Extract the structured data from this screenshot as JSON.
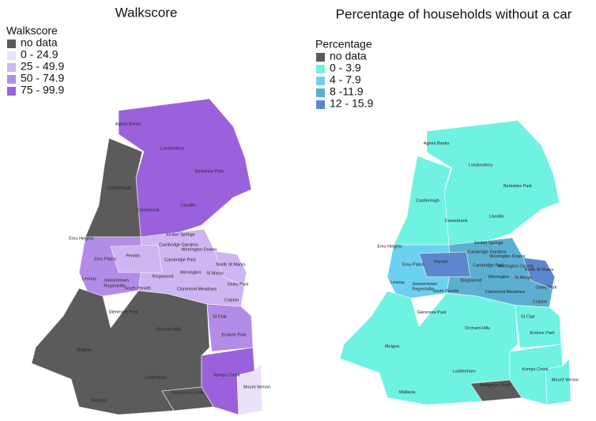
{
  "maps": [
    {
      "title": "Walkscore",
      "legend_title": "Walkscore",
      "legend": [
        {
          "label": "no data",
          "color": "#5b5b5b"
        },
        {
          "label": "0 - 24.9",
          "color": "#ebe1f8"
        },
        {
          "label": "25 - 49.9",
          "color": "#cdb6f2"
        },
        {
          "label": "50 - 74.9",
          "color": "#b38ce8"
        },
        {
          "label": "75 - 99.9",
          "color": "#9b61dd"
        }
      ],
      "regions": [
        "Agnes Banks",
        "Londonderry",
        "Berkshire Park",
        "Castlereagh",
        "Cranebrook",
        "Llandilo",
        "Emu Heights",
        "Jordan Springs",
        "Cambridge Gardens",
        "Werrington Downs",
        "Emu Plains",
        "Penrith",
        "Cambridge Park",
        "North St Marys",
        "Werrington",
        "St Marys",
        "Leonay",
        "Kingswood",
        "Oxley Park",
        "Jamisontown",
        "Regentville",
        "South Penrith",
        "Claremont Meadows",
        "Colyton",
        "Glenmore Park",
        "St Clair",
        "Orchard Hills",
        "Erskine Park",
        "Mulgoa",
        "Kemps Creek",
        "Luddenham",
        "Badgerys Creek",
        "Mount Vernon",
        "Wallacia"
      ]
    },
    {
      "title": "Percentage of households without a car",
      "legend_title": "Percentage",
      "legend": [
        {
          "label": "no data",
          "color": "#5b5b5b"
        },
        {
          "label": "0 - 3.9",
          "color": "#6ff2e2"
        },
        {
          "label": "4 - 7.9",
          "color": "#6cd0f0"
        },
        {
          "label": "8 -11.9",
          "color": "#5cafd0"
        },
        {
          "label": "12 - 15.9",
          "color": "#5b88cc"
        }
      ],
      "regions": [
        "Agnes Banks",
        "Londonderry",
        "Berkshire Park",
        "Castlereagh",
        "Cranebrook",
        "Llandilo",
        "Emu Heights",
        "Jordan Springs",
        "Cambridge Gardens",
        "Werrington Downs",
        "Emu Plains",
        "Penrith",
        "Cambridge Park",
        "North St Marys",
        "Werrington",
        "St Marys",
        "Leonay",
        "Kingswood",
        "Oxley Park",
        "Jamisontown",
        "Regentville",
        "South Penrith",
        "Claremont Meadows",
        "Colyton",
        "Glenmore Park",
        "St Clair",
        "Orchard Hills",
        "Erskine Park",
        "Mulgoa",
        "Kemps Creek",
        "Luddenham",
        "Badgerys Creek",
        "Mount Vernon",
        "Wallacia",
        "Werrington County"
      ]
    }
  ]
}
